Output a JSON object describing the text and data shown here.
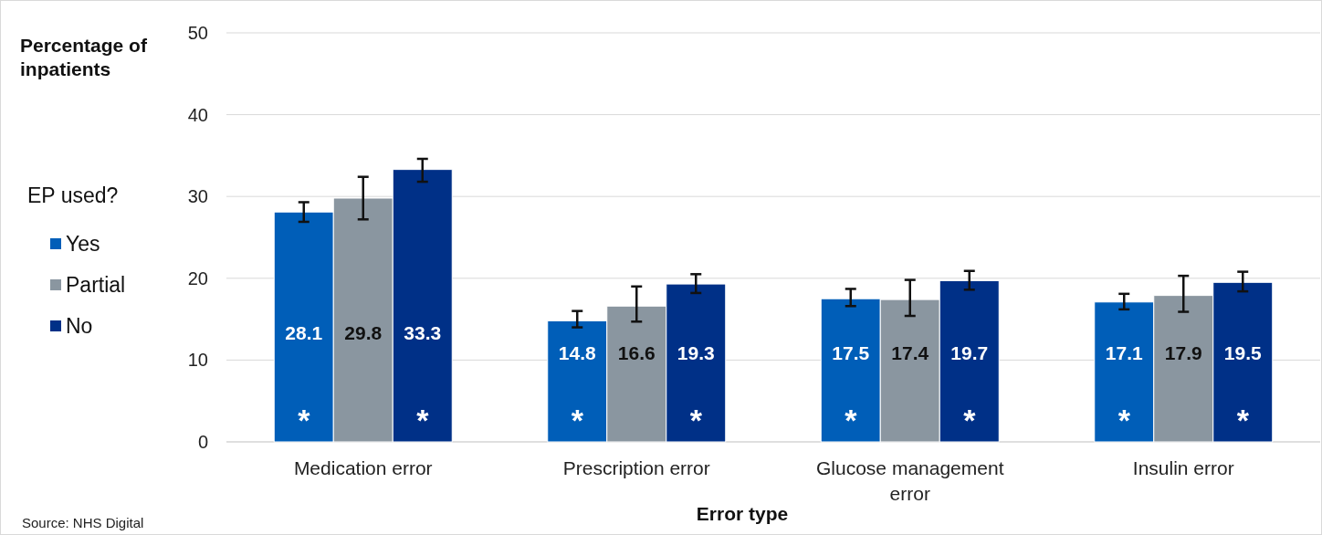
{
  "chart_data": {
    "type": "bar",
    "xlabel": "Error type",
    "ylabel": "Percentage of inpatients",
    "legend_title": "EP used?",
    "legend": "left",
    "categories": [
      "Medication error",
      "Prescription error",
      "Glucose management error",
      "Insulin error"
    ],
    "series": [
      {
        "name": "Yes",
        "color": "#005eb8",
        "values": [
          28.1,
          14.8,
          17.5,
          17.1
        ],
        "errors": [
          [
            26.9,
            29.3
          ],
          [
            14.0,
            16.0
          ],
          [
            16.6,
            18.7
          ],
          [
            16.2,
            18.1
          ]
        ]
      },
      {
        "name": "Partial",
        "color": "#8a96a0",
        "values": [
          29.8,
          16.6,
          17.4,
          17.9
        ],
        "errors": [
          [
            27.2,
            32.4
          ],
          [
            14.7,
            19.0
          ],
          [
            15.4,
            19.8
          ],
          [
            15.9,
            20.3
          ]
        ]
      },
      {
        "name": "No",
        "color": "#003087",
        "values": [
          33.3,
          19.3,
          19.7,
          19.5
        ],
        "errors": [
          [
            31.8,
            34.6
          ],
          [
            18.2,
            20.5
          ],
          [
            18.6,
            20.9
          ],
          [
            18.4,
            20.8
          ]
        ]
      }
    ],
    "data_labels": true,
    "ylim": [
      0,
      50
    ],
    "yticks": [
      0,
      10,
      20,
      30,
      40,
      50
    ],
    "grid": "y",
    "annotations": [
      "*",
      "*",
      "*",
      "*",
      "*",
      "*",
      "*",
      "*",
      "Source: NHS Digital"
    ]
  }
}
